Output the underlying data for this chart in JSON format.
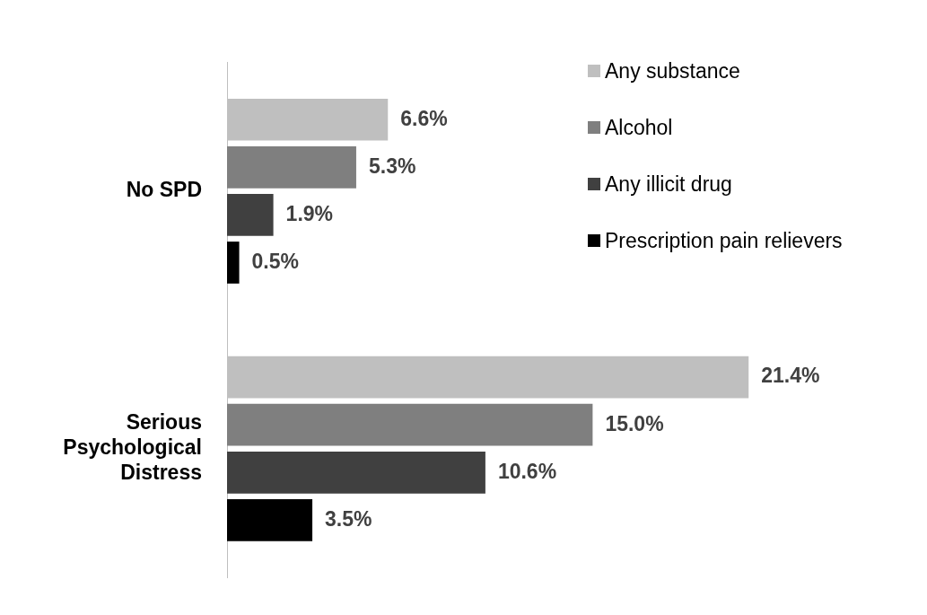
{
  "chart_data": {
    "type": "bar",
    "orientation": "horizontal",
    "categories": [
      "No SPD",
      "Serious Psychological Distress"
    ],
    "series": [
      {
        "name": "Any substance",
        "color": "#bfbfbf",
        "values": [
          6.6,
          21.4
        ],
        "value_labels": [
          "6.6%",
          "21.4%"
        ]
      },
      {
        "name": "Alcohol",
        "color": "#7f7f7f",
        "values": [
          5.3,
          15.0
        ],
        "value_labels": [
          "5.3%",
          "15.0%"
        ]
      },
      {
        "name": "Any illicit drug",
        "color": "#404040",
        "values": [
          1.9,
          10.6
        ],
        "value_labels": [
          "1.9%",
          "10.6%"
        ]
      },
      {
        "name": "Prescription pain relievers",
        "color": "#000000",
        "values": [
          0.5,
          3.5
        ],
        "value_labels": [
          "0.5%",
          "3.5%"
        ]
      }
    ],
    "legend": "top right"
  }
}
